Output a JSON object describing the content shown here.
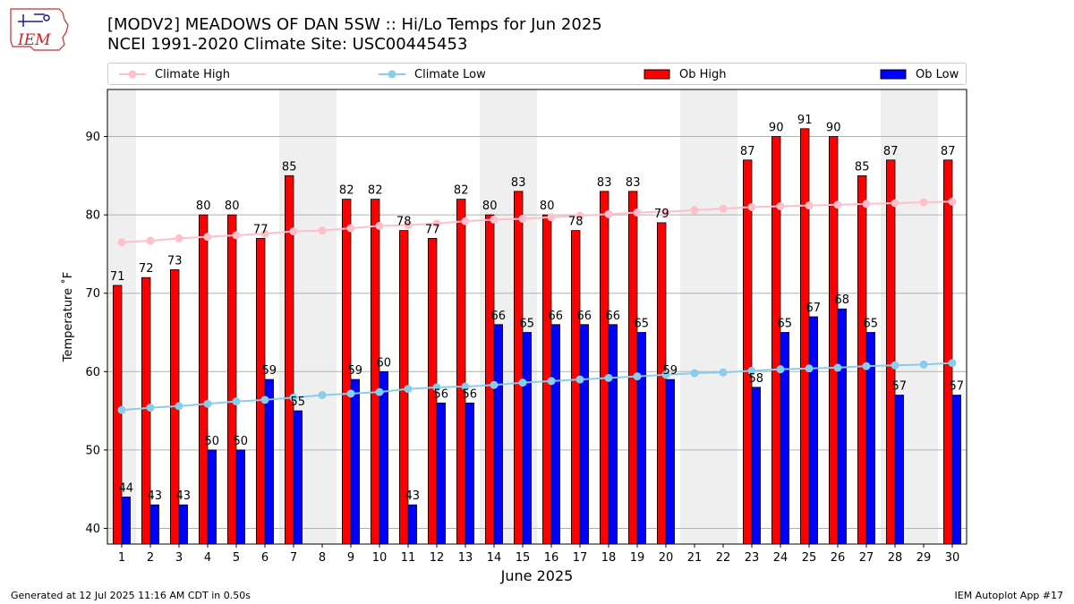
{
  "header": {
    "title_line1": "[MODV2] MEADOWS OF DAN 5SW :: Hi/Lo Temps for Jun 2025",
    "title_line2": "NCEI 1991-2020 Climate Site: USC00445453",
    "logo_text": "IEM"
  },
  "legend": {
    "items": [
      {
        "label": "Climate High",
        "color": "#ffc0cb",
        "kind": "line"
      },
      {
        "label": "Climate Low",
        "color": "#87ceeb",
        "kind": "line"
      },
      {
        "label": "Ob High",
        "color": "#ff0000",
        "kind": "bar"
      },
      {
        "label": "Ob Low",
        "color": "#0000ff",
        "kind": "bar"
      }
    ]
  },
  "footer": {
    "left": "Generated at 12 Jul 2025 11:16 AM CDT in 0.50s",
    "right": "IEM Autoplot App #17"
  },
  "chart_data": {
    "type": "bar",
    "title": "[MODV2] MEADOWS OF DAN 5SW :: Hi/Lo Temps for Jun 2025",
    "xlabel": "June 2025",
    "ylabel": "Temperature ˚F",
    "ylim": [
      38,
      96
    ],
    "yticks": [
      40,
      50,
      60,
      70,
      80,
      90
    ],
    "x": [
      1,
      2,
      3,
      4,
      5,
      6,
      7,
      8,
      9,
      10,
      11,
      12,
      13,
      14,
      15,
      16,
      17,
      18,
      19,
      20,
      21,
      22,
      23,
      24,
      25,
      26,
      27,
      28,
      29,
      30
    ],
    "weekend_shading": [
      [
        1,
        1
      ],
      [
        7,
        8
      ],
      [
        14,
        15
      ],
      [
        21,
        22
      ],
      [
        28,
        29
      ]
    ],
    "grid": true,
    "series": [
      {
        "name": "Ob High",
        "color": "#ff0000",
        "values": [
          71,
          72,
          73,
          80,
          80,
          77,
          85,
          null,
          82,
          82,
          78,
          77,
          82,
          80,
          83,
          80,
          78,
          83,
          83,
          79,
          null,
          null,
          87,
          90,
          91,
          90,
          85,
          87,
          null,
          87
        ]
      },
      {
        "name": "Ob Low",
        "color": "#0000ff",
        "values": [
          44,
          43,
          43,
          50,
          50,
          59,
          55,
          null,
          59,
          60,
          43,
          56,
          56,
          66,
          65,
          66,
          66,
          66,
          65,
          59,
          null,
          null,
          58,
          65,
          67,
          68,
          65,
          57,
          null,
          57
        ]
      },
      {
        "name": "Climate High",
        "color": "#ffc0cb",
        "values": [
          76.5,
          76.7,
          77.0,
          77.2,
          77.4,
          77.6,
          77.9,
          78.0,
          78.3,
          78.6,
          78.7,
          78.9,
          79.2,
          79.4,
          79.5,
          79.7,
          79.9,
          80.1,
          80.3,
          80.4,
          80.6,
          80.8,
          81.0,
          81.1,
          81.2,
          81.3,
          81.4,
          81.5,
          81.6,
          81.7
        ]
      },
      {
        "name": "Climate Low",
        "color": "#87ceeb",
        "values": [
          55.1,
          55.4,
          55.6,
          55.9,
          56.2,
          56.4,
          56.7,
          57.0,
          57.2,
          57.4,
          57.8,
          58.0,
          58.1,
          58.3,
          58.6,
          58.8,
          59.0,
          59.2,
          59.4,
          59.6,
          59.8,
          59.9,
          60.1,
          60.3,
          60.4,
          60.5,
          60.7,
          60.8,
          60.9,
          61.1
        ]
      }
    ]
  }
}
